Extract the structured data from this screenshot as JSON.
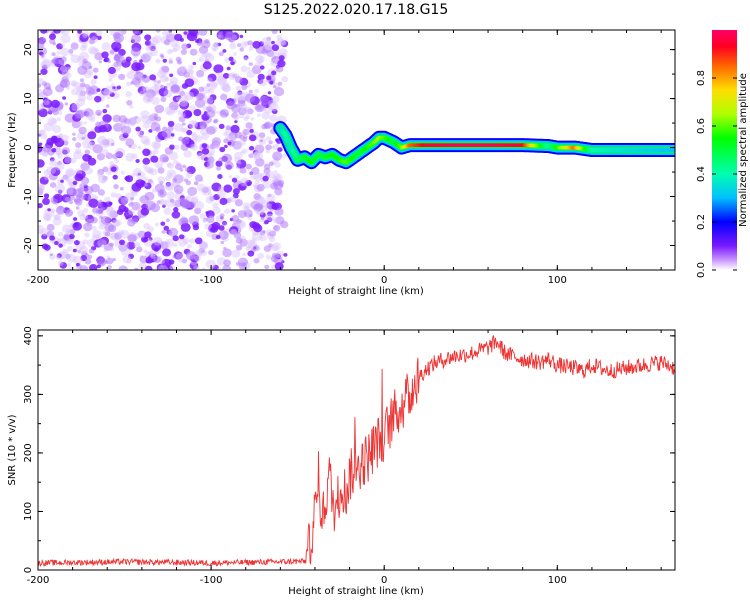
{
  "title": "S125.2022.020.17.18.G15",
  "chart_data": [
    {
      "type": "heatmap",
      "xlabel": "Height of straight line (km)",
      "ylabel": "Frequency (Hz)",
      "xlim": [
        -200,
        168
      ],
      "ylim": [
        -25,
        24
      ],
      "xticks": [
        -200,
        -100,
        0,
        100
      ],
      "xtick_labels": [
        "-200",
        "-100",
        "0",
        "100"
      ],
      "yticks": [
        -20,
        -10,
        0,
        10,
        20
      ],
      "ytick_labels": [
        "-20",
        "-10",
        "0",
        "10",
        "20"
      ],
      "noise_region_x": [
        -200,
        -57
      ],
      "ridge": {
        "x": [
          -60,
          -57,
          -54,
          -50,
          -46,
          -42,
          -38,
          -34,
          -30,
          -26,
          -22,
          -18,
          -14,
          -10,
          -6,
          -3,
          0,
          3,
          6,
          10,
          15,
          25,
          40,
          60,
          80,
          95,
          100,
          110,
          120,
          140,
          168
        ],
        "freq": [
          4,
          2.5,
          0,
          -2.5,
          -2,
          -3,
          -1.5,
          -2,
          -1.5,
          -2.5,
          -3,
          -2,
          -1,
          0,
          1,
          2,
          2,
          1.5,
          1,
          0,
          0.5,
          0.5,
          0.5,
          0.5,
          0.5,
          0.3,
          0,
          0,
          -0.5,
          -0.5,
          -0.5
        ],
        "amplitude": [
          0.3,
          0.4,
          0.35,
          0.45,
          0.5,
          0.55,
          0.5,
          0.5,
          0.55,
          0.55,
          0.6,
          0.55,
          0.5,
          0.55,
          0.6,
          0.65,
          0.6,
          0.55,
          0.5,
          0.6,
          0.85,
          0.95,
          0.98,
          0.98,
          0.95,
          0.4,
          0.55,
          0.85,
          0.4,
          0.35,
          0.3
        ]
      },
      "colorbar": {
        "label": "Normalized spectral amplitude",
        "range": [
          0,
          1
        ],
        "ticks": [
          0.0,
          0.2,
          0.4,
          0.6,
          0.8
        ],
        "tick_labels": [
          "0.0",
          "0.2",
          "0.4",
          "0.6",
          "0.8"
        ]
      }
    },
    {
      "type": "line",
      "xlabel": "Height of straight line (km)",
      "ylabel": "SNR (10 * v/v)",
      "xlim": [
        -200,
        168
      ],
      "ylim": [
        0,
        410
      ],
      "xticks": [
        -200,
        -100,
        0,
        100
      ],
      "xtick_labels": [
        "-200",
        "-100",
        "0",
        "100"
      ],
      "yticks": [
        0,
        100,
        200,
        300,
        400
      ],
      "ytick_labels": [
        "0",
        "100",
        "200",
        "300",
        "400"
      ],
      "color": "#ee3333",
      "series": [
        {
          "x": [
            -200,
            -150,
            -100,
            -60,
            -45,
            -42,
            -40,
            -38,
            -35,
            -32,
            -30,
            -28,
            -25,
            -22,
            -20,
            -15,
            -10,
            -5,
            0,
            5,
            10,
            15,
            20,
            25,
            30,
            40,
            50,
            60,
            65,
            70,
            80,
            90,
            95,
            100,
            110,
            115,
            120,
            125,
            130,
            140,
            150,
            160,
            168
          ],
          "y": [
            12,
            14,
            12,
            14,
            15,
            60,
            100,
            130,
            90,
            170,
            120,
            100,
            150,
            130,
            160,
            180,
            190,
            215,
            230,
            260,
            280,
            300,
            330,
            345,
            355,
            365,
            370,
            380,
            390,
            370,
            360,
            355,
            360,
            350,
            345,
            340,
            350,
            345,
            340,
            345,
            350,
            355,
            345
          ]
        }
      ]
    }
  ]
}
